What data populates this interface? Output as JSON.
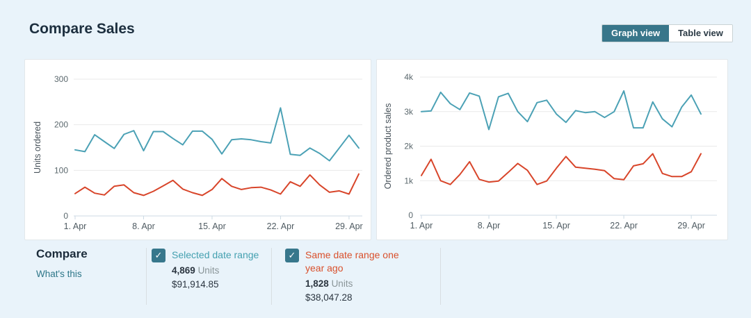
{
  "header": {
    "title": "Compare Sales"
  },
  "view_toggle": {
    "graph_label": "Graph view",
    "table_label": "Table view",
    "selected": "Graph view",
    "selected_bg": "#38768a"
  },
  "chart_data": [
    {
      "type": "line",
      "ylabel": "Units ordered",
      "ylim": [
        0,
        300
      ],
      "ytick_values": [
        0,
        100,
        200,
        300
      ],
      "ytick_labels": [
        "0",
        "100",
        "200",
        "300"
      ],
      "xtick_days": [
        1,
        8,
        15,
        22,
        29
      ],
      "xtick_labels": [
        "1. Apr",
        "8. Apr",
        "15. Apr",
        "22. Apr",
        "29. Apr"
      ],
      "grid": "horizontal",
      "legend_position": "none",
      "series": [
        {
          "name": "Selected date range",
          "color": "#4ba1b5",
          "values": [
            145,
            141,
            178,
            163,
            148,
            179,
            187,
            143,
            185,
            185,
            170,
            156,
            186,
            186,
            168,
            136,
            167,
            169,
            167,
            163,
            160,
            237,
            135,
            133,
            149,
            137,
            121,
            149,
            177,
            149
          ]
        },
        {
          "name": "Same date range one year ago",
          "color": "#d8452a",
          "values": [
            49,
            63,
            50,
            46,
            65,
            68,
            51,
            45,
            54,
            66,
            78,
            59,
            51,
            45,
            58,
            82,
            65,
            58,
            62,
            63,
            57,
            48,
            75,
            65,
            90,
            68,
            52,
            55,
            48,
            92
          ]
        }
      ]
    },
    {
      "type": "line",
      "ylabel": "Ordered product sales",
      "ylim": [
        0,
        4000
      ],
      "ytick_values": [
        0,
        1000,
        2000,
        3000,
        4000
      ],
      "ytick_labels": [
        "0",
        "1k",
        "2k",
        "3k",
        "4k"
      ],
      "xtick_days": [
        1,
        8,
        15,
        22,
        29
      ],
      "xtick_labels": [
        "1. Apr",
        "8. Apr",
        "15. Apr",
        "22. Apr",
        "29. Apr"
      ],
      "grid": "horizontal",
      "legend_position": "none",
      "series": [
        {
          "name": "Selected date range",
          "color": "#4ba1b5",
          "values": [
            3000,
            3020,
            3560,
            3230,
            3060,
            3540,
            3450,
            2480,
            3430,
            3530,
            3000,
            2710,
            3260,
            3330,
            2930,
            2690,
            3030,
            2970,
            3000,
            2830,
            3000,
            3600,
            2530,
            2530,
            3280,
            2790,
            2560,
            3130,
            3480,
            2930
          ]
        },
        {
          "name": "Same date range one year ago",
          "color": "#d8452a",
          "values": [
            1150,
            1620,
            1000,
            890,
            1180,
            1550,
            1040,
            960,
            990,
            1240,
            1500,
            1300,
            890,
            990,
            1360,
            1700,
            1390,
            1360,
            1330,
            1290,
            1060,
            1030,
            1430,
            1490,
            1780,
            1210,
            1120,
            1120,
            1260,
            1780
          ]
        }
      ]
    }
  ],
  "compare": {
    "heading": "Compare",
    "link": "What's this",
    "checkbox_color": "#37778c",
    "check_glyph": "✓",
    "items": [
      {
        "label": "Selected date range",
        "color": "#44a0b0",
        "checked": true,
        "units_value": "4,869",
        "units_word": "Units",
        "amount": "$91,914.85"
      },
      {
        "label": "Same date range one year ago",
        "color": "#d9502c",
        "checked": true,
        "units_value": "1,828",
        "units_word": "Units",
        "amount": "$38,047.28"
      }
    ]
  },
  "theme": {
    "page_bg": "#e9f3fa",
    "grid_color": "#e9e9e9",
    "axis_color": "#ccdae4",
    "tick_text_color": "#5b686d",
    "xtick_text_color": "#4e5a61",
    "axis_title_color": "#47525a"
  }
}
